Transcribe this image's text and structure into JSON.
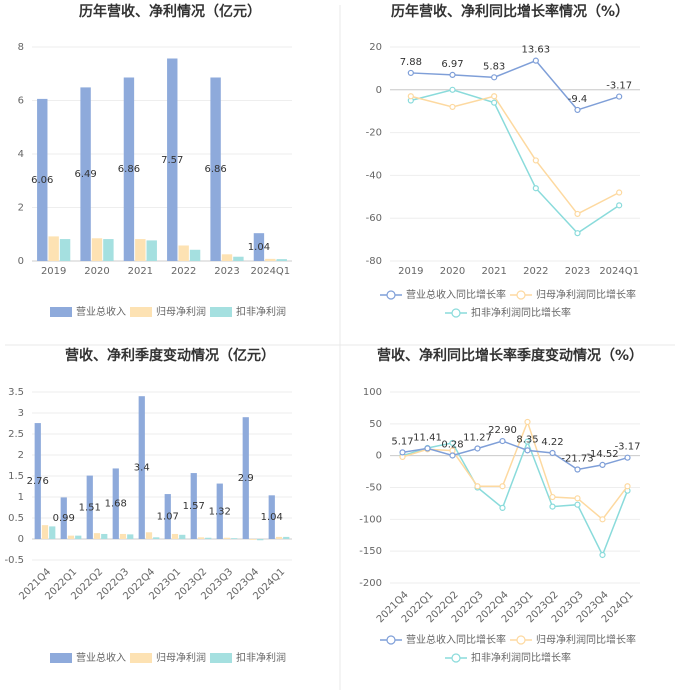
{
  "chart_data": [
    {
      "type": "bar",
      "title": "历年营收、净利情况（亿元）",
      "categories": [
        "2019",
        "2020",
        "2021",
        "2022",
        "2023",
        "2024Q1"
      ],
      "series": [
        {
          "name": "营业总收入",
          "color": "#8eaadb",
          "values": [
            6.06,
            6.49,
            6.86,
            7.57,
            6.86,
            1.04
          ]
        },
        {
          "name": "归母净利润",
          "color": "#fde2b3",
          "values": [
            0.92,
            0.85,
            0.82,
            0.58,
            0.25,
            0.08
          ]
        },
        {
          "name": "扣非净利润",
          "color": "#a5e0e0",
          "values": [
            0.82,
            0.82,
            0.77,
            0.42,
            0.16,
            0.07
          ]
        }
      ],
      "ylim": [
        0,
        8
      ],
      "yticks": [
        0,
        2,
        4,
        6,
        8
      ],
      "grid": true
    },
    {
      "type": "line",
      "title": "历年营收、净利同比增长率情况（%）",
      "categories": [
        "2019",
        "2020",
        "2021",
        "2022",
        "2023",
        "2024Q1"
      ],
      "series": [
        {
          "name": "营业总收入同比增长率",
          "color": "#7f9fd8",
          "values": [
            7.88,
            6.97,
            5.83,
            13.63,
            -9.4,
            -3.17
          ]
        },
        {
          "name": "归母净利润同比增长率",
          "color": "#fdd9a0",
          "values": [
            -3,
            -8,
            -3,
            -33,
            -58,
            -48
          ]
        },
        {
          "name": "扣非净利润同比增长率",
          "color": "#8adbdb",
          "values": [
            -5,
            0,
            -6,
            -46,
            -67,
            -54
          ]
        }
      ],
      "ylim": [
        -80,
        20
      ],
      "yticks": [
        -80,
        -60,
        -40,
        -20,
        0,
        20
      ],
      "grid": true
    },
    {
      "type": "bar",
      "title": "营收、净利季度变动情况（亿元）",
      "categories": [
        "2021Q4",
        "2022Q1",
        "2022Q2",
        "2022Q3",
        "2022Q4",
        "2023Q1",
        "2023Q2",
        "2023Q3",
        "2023Q4",
        "2024Q1"
      ],
      "series": [
        {
          "name": "营业总收入",
          "color": "#8eaadb",
          "values": [
            2.76,
            0.99,
            1.51,
            1.68,
            3.4,
            1.07,
            1.57,
            1.32,
            2.9,
            1.04
          ]
        },
        {
          "name": "归母净利润",
          "color": "#fde2b3",
          "values": [
            0.33,
            0.08,
            0.14,
            0.12,
            0.16,
            0.12,
            0.04,
            0.03,
            -0.02,
            0.05
          ]
        },
        {
          "name": "扣非净利润",
          "color": "#a5e0e0",
          "values": [
            0.3,
            0.08,
            0.12,
            0.11,
            0.04,
            0.1,
            0.03,
            0.02,
            -0.03,
            0.05
          ]
        }
      ],
      "ylim": [
        -0.5,
        3.5
      ],
      "yticks": [
        -0.5,
        0,
        0.5,
        1,
        1.5,
        2,
        2.5,
        3,
        3.5
      ],
      "grid": true
    },
    {
      "type": "line",
      "title": "营收、净利同比增长率季度变动情况（%）",
      "categories": [
        "2021Q4",
        "2022Q1",
        "2022Q2",
        "2022Q3",
        "2022Q4",
        "2023Q1",
        "2023Q2",
        "2023Q3",
        "2023Q4",
        "2024Q1"
      ],
      "series": [
        {
          "name": "营业总收入同比增长率",
          "color": "#7f9fd8",
          "values": [
            5.17,
            11.41,
            0.28,
            11.27,
            22.9,
            8.35,
            4.22,
            -21.73,
            -14.52,
            -3.17
          ],
          "value_labels": [
            "5.17",
            "11.41",
            "0.28",
            "11.27",
            "22.90",
            "8.35",
            "4.22",
            "-21.73",
            "-14.52",
            "-3.17"
          ]
        },
        {
          "name": "归母净利润同比增长率",
          "color": "#fdd9a0",
          "values": [
            -2,
            10,
            8,
            -48,
            -48,
            53,
            -65,
            -67,
            -100,
            -48
          ]
        },
        {
          "name": "扣非净利润同比增长率",
          "color": "#8adbdb",
          "values": [
            0,
            12,
            20,
            -50,
            -82,
            22,
            -80,
            -77,
            -156,
            -55
          ]
        }
      ],
      "ylim": [
        -200,
        100
      ],
      "yticks": [
        -200,
        -150,
        -100,
        -50,
        0,
        50,
        100
      ],
      "grid": true
    }
  ]
}
